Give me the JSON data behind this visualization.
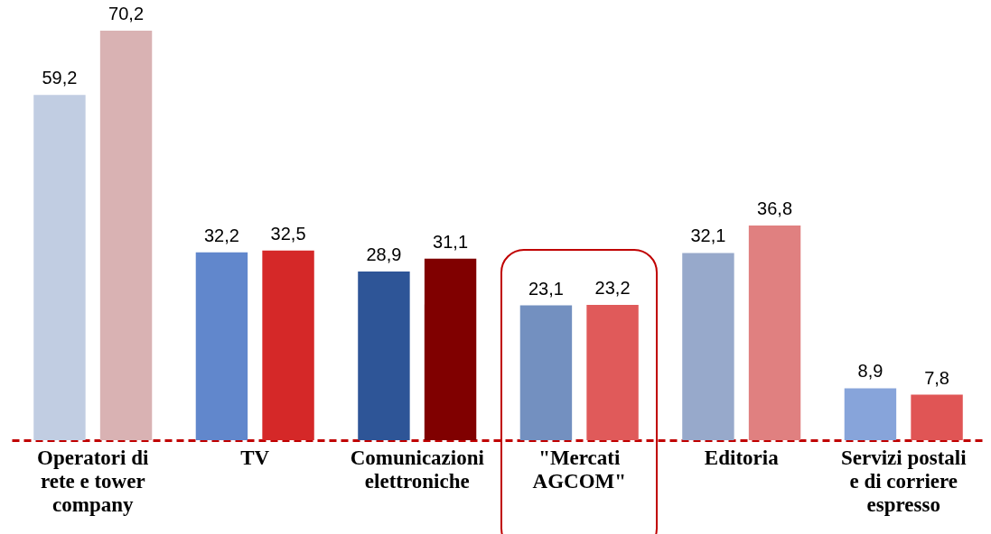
{
  "chart_data": {
    "type": "bar",
    "categories": [
      "Operatori di\nrete e tower\ncompany",
      "TV",
      "Comunicazioni\nelettroniche",
      "\"Mercati\nAGCOM\"",
      "Editoria",
      "Servizi postali\ne di corriere\nespresso"
    ],
    "series": [
      {
        "colors": [
          "#c1cde2",
          "#6187cc",
          "#2e5597",
          "#7390c0",
          "#97a9cb",
          "#87a4da"
        ],
        "values": [
          59.2,
          32.2,
          28.9,
          23.1,
          32.1,
          8.9
        ],
        "value_labels": [
          "59,2",
          "32,2",
          "28,9",
          "23,1",
          "32,1",
          "8,9"
        ]
      },
      {
        "colors": [
          "#d9b2b3",
          "#d52828",
          "#800000",
          "#e05a5a",
          "#e08080",
          "#e05555"
        ],
        "values": [
          70.2,
          32.5,
          31.1,
          23.2,
          36.8,
          7.8
        ],
        "value_labels": [
          "70,2",
          "32,5",
          "31,1",
          "23,2",
          "36,8",
          "7,8"
        ]
      }
    ]
  }
}
